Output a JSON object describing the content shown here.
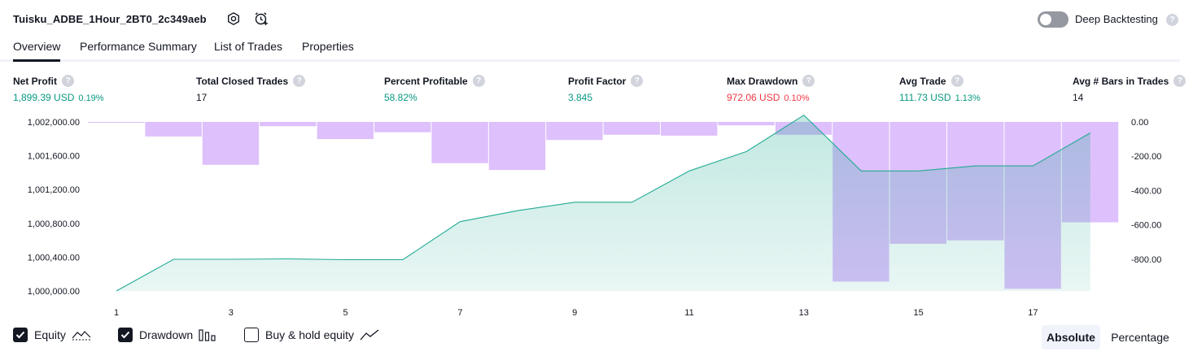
{
  "header": {
    "strategy_name": "Tuisku_ADBE_1Hour_2BT0_2c349aeb",
    "deep_backtesting_label": "Deep Backtesting",
    "help_glyph": "?"
  },
  "tabs": [
    {
      "label": "Overview",
      "active": true
    },
    {
      "label": "Performance Summary",
      "active": false
    },
    {
      "label": "List of Trades",
      "active": false
    },
    {
      "label": "Properties",
      "active": false
    }
  ],
  "metrics": [
    {
      "label": "Net Profit",
      "value": "1,899.39 USD",
      "sub": "0.19%",
      "tone": "pos"
    },
    {
      "label": "Total Closed Trades",
      "value": "17",
      "sub": "",
      "tone": "neutral"
    },
    {
      "label": "Percent Profitable",
      "value": "58.82%",
      "sub": "",
      "tone": "pos"
    },
    {
      "label": "Profit Factor",
      "value": "3.845",
      "sub": "",
      "tone": "pos"
    },
    {
      "label": "Max Drawdown",
      "value": "972.06 USD",
      "sub": "0.10%",
      "tone": "neg"
    },
    {
      "label": "Avg Trade",
      "value": "111.73 USD",
      "sub": "1.13%",
      "tone": "pos"
    },
    {
      "label": "Avg # Bars in Trades",
      "value": "14",
      "sub": "",
      "tone": "neutral"
    }
  ],
  "chart_data": {
    "type": "area",
    "left_axis": {
      "ticks": [
        "1,002,000.00",
        "1,001,600.00",
        "1,001,200.00",
        "1,000,800.00",
        "1,000,400.00",
        "1,000,000.00"
      ],
      "min": 1000000,
      "max": 1002000
    },
    "right_axis": {
      "ticks": [
        "0.00",
        "-200.00",
        "-400.00",
        "-600.00",
        "-800.00"
      ],
      "min": -985,
      "max": 0
    },
    "x_ticks": [
      "1",
      "3",
      "5",
      "7",
      "9",
      "11",
      "13",
      "15",
      "17"
    ],
    "equity": {
      "name": "Equity",
      "color": "#22ab94",
      "x": [
        1,
        2,
        3,
        4,
        5,
        6,
        7,
        8,
        9,
        10,
        11,
        12,
        13,
        14,
        15,
        16,
        17,
        18
      ],
      "values": [
        1000000,
        1000375,
        1000375,
        1000380,
        1000370,
        1000370,
        1000820,
        1000950,
        1001050,
        1001050,
        1001420,
        1001650,
        1002080,
        1001420,
        1001420,
        1001480,
        1001480,
        1001870
      ]
    },
    "drawdown": {
      "name": "Drawdown",
      "color": "#d1a7fb",
      "x": [
        1,
        2,
        3,
        4,
        5,
        6,
        7,
        8,
        9,
        10,
        11,
        12,
        13,
        14,
        15,
        16,
        17,
        18
      ],
      "values": [
        -5,
        -85,
        -250,
        -25,
        -100,
        -60,
        -240,
        -280,
        -105,
        -75,
        -80,
        -20,
        -75,
        -930,
        -710,
        -690,
        -972,
        -585
      ]
    }
  },
  "legend": {
    "equity_label": "Equity",
    "drawdown_label": "Drawdown",
    "buyhold_label": "Buy & hold equity",
    "absolute_label": "Absolute",
    "percentage_label": "Percentage"
  }
}
